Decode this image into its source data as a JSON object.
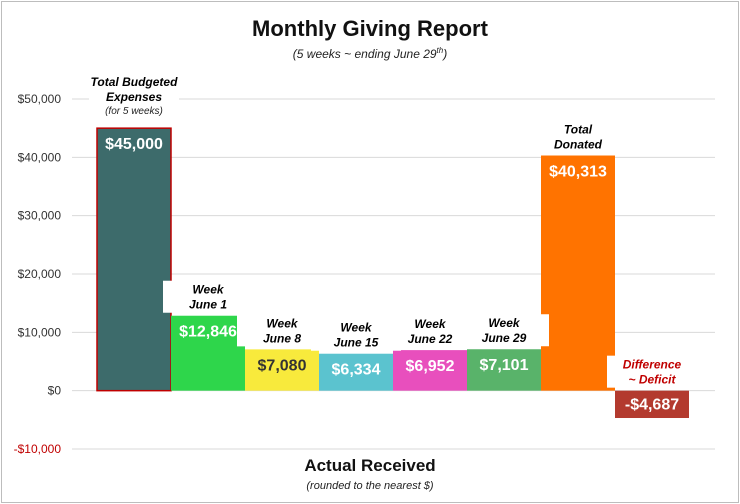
{
  "chart_data": {
    "type": "bar",
    "title": "Monthly Giving Report",
    "subtitle": "(5 weeks ~ ending June 29",
    "subtitle_sup": "th",
    "subtitle_end": ")",
    "xlabel": "Actual Received",
    "xlabel_note": "(rounded to the nearest $)",
    "ylabel": "",
    "ylim": [
      -10000,
      50000
    ],
    "yticks": [
      {
        "value": 50000,
        "label": "$50,000"
      },
      {
        "value": 40000,
        "label": "$40,000"
      },
      {
        "value": 30000,
        "label": "$30,000"
      },
      {
        "value": 20000,
        "label": "$20,000"
      },
      {
        "value": 10000,
        "label": "$10,000"
      },
      {
        "value": 0,
        "label": "$0"
      },
      {
        "value": -10000,
        "label": "-$10,000"
      }
    ],
    "grid": true,
    "bars": [
      {
        "category_lines": [
          "Total Budgeted",
          "Expenses"
        ],
        "note": "(for 5 weeks)",
        "value": 45000,
        "label": "$45,000",
        "color": "#3d6b6b",
        "border": "#c00000",
        "category_color": "#000000"
      },
      {
        "category_lines": [
          "Week",
          "June 1"
        ],
        "value": 12846,
        "label": "$12,846",
        "color": "#2ed64b",
        "category_color": "#000000"
      },
      {
        "category_lines": [
          "Week",
          "June 8"
        ],
        "value": 7080,
        "label": "$7,080",
        "color": "#f8ea3c",
        "label_color": "#333333",
        "category_color": "#000000"
      },
      {
        "category_lines": [
          "Week",
          "June 15"
        ],
        "value": 6334,
        "label": "$6,334",
        "color": "#5bc3cf",
        "category_color": "#000000"
      },
      {
        "category_lines": [
          "Week",
          "June 22"
        ],
        "value": 6952,
        "label": "$6,952",
        "color": "#e84fbd",
        "category_color": "#000000"
      },
      {
        "category_lines": [
          "Week",
          "June 29"
        ],
        "value": 7101,
        "label": "$7,101",
        "color": "#59b36a",
        "category_color": "#000000"
      },
      {
        "category_lines": [
          "Total",
          "Donated"
        ],
        "value": 40313,
        "label": "$40,313",
        "color": "#ff7300",
        "category_color": "#000000"
      },
      {
        "category_lines": [
          "Difference",
          "~ Deficit"
        ],
        "value": -4687,
        "label": "-$4,687",
        "color": "#b33a2e",
        "category_color": "#c00000"
      }
    ]
  }
}
